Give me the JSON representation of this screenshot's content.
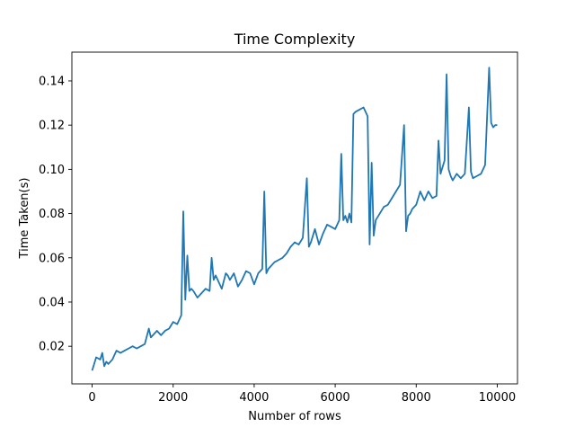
{
  "chart_data": {
    "type": "line",
    "title": "Time Complexity",
    "xlabel": "Number of rows",
    "ylabel": "Time Taken(s)",
    "xlim": [
      -500,
      10500
    ],
    "ylim": [
      0.003,
      0.153
    ],
    "xticks": [
      0,
      2000,
      4000,
      6000,
      8000,
      10000
    ],
    "yticks": [
      0.02,
      0.04,
      0.06,
      0.08,
      0.1,
      0.12,
      0.14
    ],
    "grid": false,
    "legend": "none",
    "line_color": "#1f77b4",
    "series": [
      {
        "x": [
          0,
          100,
          200,
          250,
          300,
          350,
          400,
          500,
          600,
          700,
          800,
          900,
          1000,
          1100,
          1200,
          1300,
          1400,
          1450,
          1500,
          1600,
          1700,
          1800,
          1900,
          2000,
          2100,
          2200,
          2250,
          2300,
          2350,
          2400,
          2450,
          2500,
          2600,
          2700,
          2800,
          2900,
          2950,
          3000,
          3050,
          3100,
          3200,
          3300,
          3350,
          3400,
          3500,
          3600,
          3700,
          3800,
          3900,
          4000,
          4100,
          4200,
          4250,
          4300,
          4350,
          4400,
          4500,
          4600,
          4700,
          4800,
          4900,
          5000,
          5100,
          5200,
          5300,
          5350,
          5400,
          5500,
          5600,
          5700,
          5800,
          5900,
          6000,
          6100,
          6150,
          6200,
          6250,
          6300,
          6350,
          6400,
          6450,
          6500,
          6600,
          6700,
          6800,
          6850,
          6900,
          6950,
          7000,
          7100,
          7200,
          7300,
          7400,
          7500,
          7600,
          7700,
          7750,
          7800,
          7850,
          7900,
          8000,
          8100,
          8200,
          8300,
          8400,
          8500,
          8550,
          8600,
          8700,
          8750,
          8800,
          8850,
          8900,
          9000,
          9100,
          9200,
          9300,
          9350,
          9400,
          9500,
          9600,
          9700,
          9800,
          9850,
          9900,
          9950,
          10000
        ],
        "y": [
          0.009,
          0.015,
          0.014,
          0.017,
          0.011,
          0.013,
          0.012,
          0.014,
          0.018,
          0.017,
          0.018,
          0.019,
          0.02,
          0.019,
          0.02,
          0.021,
          0.028,
          0.024,
          0.025,
          0.027,
          0.025,
          0.027,
          0.028,
          0.031,
          0.03,
          0.034,
          0.081,
          0.041,
          0.061,
          0.045,
          0.046,
          0.045,
          0.042,
          0.044,
          0.046,
          0.045,
          0.06,
          0.05,
          0.052,
          0.05,
          0.046,
          0.053,
          0.052,
          0.05,
          0.053,
          0.047,
          0.05,
          0.054,
          0.053,
          0.048,
          0.053,
          0.055,
          0.09,
          0.053,
          0.055,
          0.056,
          0.058,
          0.059,
          0.06,
          0.062,
          0.065,
          0.067,
          0.066,
          0.069,
          0.096,
          0.065,
          0.067,
          0.073,
          0.066,
          0.071,
          0.075,
          0.074,
          0.073,
          0.077,
          0.107,
          0.077,
          0.079,
          0.076,
          0.08,
          0.076,
          0.125,
          0.126,
          0.127,
          0.128,
          0.124,
          0.066,
          0.103,
          0.07,
          0.077,
          0.08,
          0.083,
          0.084,
          0.087,
          0.09,
          0.093,
          0.12,
          0.072,
          0.079,
          0.08,
          0.082,
          0.084,
          0.09,
          0.086,
          0.09,
          0.087,
          0.088,
          0.113,
          0.098,
          0.104,
          0.143,
          0.1,
          0.097,
          0.095,
          0.098,
          0.096,
          0.098,
          0.128,
          0.099,
          0.096,
          0.097,
          0.098,
          0.102,
          0.146,
          0.121,
          0.119,
          0.12,
          0.12
        ]
      }
    ]
  }
}
